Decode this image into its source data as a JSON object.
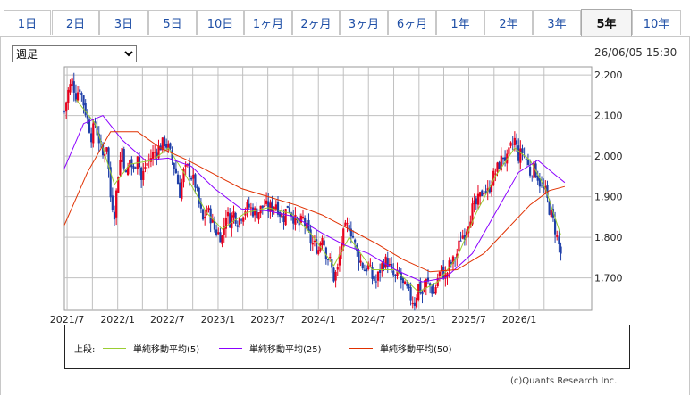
{
  "tabs": [
    {
      "label": "1日",
      "active": false
    },
    {
      "label": "2日",
      "active": false
    },
    {
      "label": "3日",
      "active": false
    },
    {
      "label": "5日",
      "active": false
    },
    {
      "label": "10日",
      "active": false
    },
    {
      "label": "1ヶ月",
      "active": false
    },
    {
      "label": "2ヶ月",
      "active": false
    },
    {
      "label": "3ヶ月",
      "active": false
    },
    {
      "label": "6ヶ月",
      "active": false
    },
    {
      "label": "1年",
      "active": false
    },
    {
      "label": "2年",
      "active": false
    },
    {
      "label": "3年",
      "active": false
    },
    {
      "label": "5年",
      "active": true
    },
    {
      "label": "10年",
      "active": false
    }
  ],
  "controls": {
    "period_select": {
      "selected": "週足",
      "options": [
        "週足"
      ]
    },
    "timestamp": "26/06/05 15:30"
  },
  "legend": {
    "lead": "上段:",
    "items": [
      {
        "label": "単純移動平均(5)",
        "color": "#9acd32"
      },
      {
        "label": "単純移動平均(25)",
        "color": "#8b00ff"
      },
      {
        "label": "単純移動平均(50)",
        "color": "#e03000"
      }
    ]
  },
  "credit": "(c)Quants Research Inc.",
  "colors": {
    "up": "#e8001c",
    "down": "#1f3fa8",
    "grid": "#c0c0c0"
  },
  "chart_data": {
    "type": "candlestick",
    "interval": "weekly",
    "x_tick_labels": [
      "2021/7",
      "2022/1",
      "2022/7",
      "2023/1",
      "2023/7",
      "2024/1",
      "2024/7",
      "2025/1",
      "2025/7",
      "2026/1"
    ],
    "y_tick_labels": [
      "2,200",
      "2,100",
      "2,000",
      "1,900",
      "1,800",
      "1,700"
    ],
    "y_ticks": [
      2200,
      2100,
      2000,
      1900,
      1800,
      1700
    ],
    "ylim": [
      1620,
      2220
    ],
    "x_start": "2021-06-21",
    "x_end": "2026-09-21",
    "close_series": [
      [
        "2021-06-21",
        2110
      ],
      [
        "2021-07-05",
        2160
      ],
      [
        "2021-07-19",
        2185
      ],
      [
        "2021-08-02",
        2150
      ],
      [
        "2021-08-16",
        2170
      ],
      [
        "2021-08-30",
        2130
      ],
      [
        "2021-09-13",
        2090
      ],
      [
        "2021-09-27",
        2050
      ],
      [
        "2021-10-11",
        2080
      ],
      [
        "2021-10-25",
        2040
      ],
      [
        "2021-11-08",
        2000
      ],
      [
        "2021-11-22",
        2030
      ],
      [
        "2021-12-06",
        1900
      ],
      [
        "2021-12-20",
        1860
      ],
      [
        "2022-01-03",
        1960
      ],
      [
        "2022-01-17",
        2020
      ],
      [
        "2022-01-31",
        1950
      ],
      [
        "2022-02-14",
        1990
      ],
      [
        "2022-02-28",
        1960
      ],
      [
        "2022-03-14",
        2010
      ],
      [
        "2022-03-28",
        1940
      ],
      [
        "2022-04-11",
        1975
      ],
      [
        "2022-04-25",
        1990
      ],
      [
        "2022-05-09",
        2005
      ],
      [
        "2022-05-23",
        2015
      ],
      [
        "2022-06-06",
        2025
      ],
      [
        "2022-06-20",
        2035
      ],
      [
        "2022-07-04",
        2020
      ],
      [
        "2022-07-18",
        1990
      ],
      [
        "2022-08-01",
        1960
      ],
      [
        "2022-08-15",
        1910
      ],
      [
        "2022-08-29",
        1960
      ],
      [
        "2022-09-12",
        1970
      ],
      [
        "2022-09-26",
        1950
      ],
      [
        "2022-10-10",
        1930
      ],
      [
        "2022-10-24",
        1880
      ],
      [
        "2022-11-07",
        1840
      ],
      [
        "2022-11-21",
        1870
      ],
      [
        "2022-12-05",
        1850
      ],
      [
        "2022-12-19",
        1820
      ],
      [
        "2023-01-02",
        1810
      ],
      [
        "2023-01-16",
        1800
      ],
      [
        "2023-01-30",
        1860
      ],
      [
        "2023-02-13",
        1840
      ],
      [
        "2023-02-27",
        1860
      ],
      [
        "2023-03-13",
        1840
      ],
      [
        "2023-03-27",
        1855
      ],
      [
        "2023-04-10",
        1870
      ],
      [
        "2023-04-24",
        1875
      ],
      [
        "2023-05-08",
        1865
      ],
      [
        "2023-05-22",
        1860
      ],
      [
        "2023-06-05",
        1870
      ],
      [
        "2023-06-19",
        1880
      ],
      [
        "2023-07-03",
        1870
      ],
      [
        "2023-07-17",
        1875
      ],
      [
        "2023-07-31",
        1885
      ],
      [
        "2023-08-14",
        1860
      ],
      [
        "2023-08-28",
        1850
      ],
      [
        "2023-09-11",
        1880
      ],
      [
        "2023-09-25",
        1860
      ],
      [
        "2023-10-09",
        1840
      ],
      [
        "2023-10-23",
        1830
      ],
      [
        "2023-11-06",
        1845
      ],
      [
        "2023-11-20",
        1820
      ],
      [
        "2023-12-04",
        1790
      ],
      [
        "2023-12-18",
        1780
      ],
      [
        "2024-01-01",
        1770
      ],
      [
        "2024-01-15",
        1810
      ],
      [
        "2024-01-29",
        1760
      ],
      [
        "2024-02-12",
        1740
      ],
      [
        "2024-02-26",
        1700
      ],
      [
        "2024-03-11",
        1720
      ],
      [
        "2024-03-25",
        1790
      ],
      [
        "2024-04-08",
        1820
      ],
      [
        "2024-04-22",
        1830
      ],
      [
        "2024-05-06",
        1800
      ],
      [
        "2024-05-20",
        1760
      ],
      [
        "2024-06-03",
        1740
      ],
      [
        "2024-06-17",
        1720
      ],
      [
        "2024-07-01",
        1730
      ],
      [
        "2024-07-15",
        1700
      ],
      [
        "2024-07-29",
        1690
      ],
      [
        "2024-08-12",
        1720
      ],
      [
        "2024-08-26",
        1740
      ],
      [
        "2024-09-09",
        1740
      ],
      [
        "2024-09-23",
        1710
      ],
      [
        "2024-10-07",
        1700
      ],
      [
        "2024-10-21",
        1710
      ],
      [
        "2024-11-04",
        1680
      ],
      [
        "2024-11-18",
        1670
      ],
      [
        "2024-12-02",
        1650
      ],
      [
        "2024-12-16",
        1640
      ],
      [
        "2024-12-30",
        1680
      ],
      [
        "2025-01-13",
        1660
      ],
      [
        "2025-01-27",
        1690
      ],
      [
        "2025-02-10",
        1680
      ],
      [
        "2025-02-24",
        1660
      ],
      [
        "2025-03-10",
        1700
      ],
      [
        "2025-03-24",
        1720
      ],
      [
        "2025-04-07",
        1700
      ],
      [
        "2025-04-21",
        1730
      ],
      [
        "2025-05-05",
        1740
      ],
      [
        "2025-05-19",
        1760
      ],
      [
        "2025-06-02",
        1800
      ],
      [
        "2025-06-16",
        1810
      ],
      [
        "2025-06-30",
        1840
      ],
      [
        "2025-07-14",
        1870
      ],
      [
        "2025-07-28",
        1880
      ],
      [
        "2025-08-11",
        1900
      ],
      [
        "2025-08-25",
        1920
      ],
      [
        "2025-09-08",
        1910
      ],
      [
        "2025-09-22",
        1940
      ],
      [
        "2025-10-06",
        1960
      ],
      [
        "2025-10-20",
        1980
      ],
      [
        "2025-11-03",
        2000
      ],
      [
        "2025-11-17",
        1990
      ],
      [
        "2025-12-01",
        2020
      ],
      [
        "2025-12-15",
        2040
      ],
      [
        "2025-12-29",
        2000
      ],
      [
        "2026-01-12",
        2010
      ],
      [
        "2026-01-26",
        1990
      ],
      [
        "2026-02-09",
        1960
      ],
      [
        "2026-02-23",
        1970
      ],
      [
        "2026-03-09",
        1950
      ],
      [
        "2026-03-23",
        1920
      ],
      [
        "2026-04-06",
        1910
      ],
      [
        "2026-04-20",
        1870
      ],
      [
        "2026-05-04",
        1840
      ],
      [
        "2026-05-18",
        1800
      ],
      [
        "2026-06-01",
        1760
      ]
    ],
    "series": [
      {
        "name": "単純移動平均(5)",
        "color": "#9acd32",
        "values": [
          [
            "2021-08-02",
            2140
          ],
          [
            "2021-10-11",
            2080
          ],
          [
            "2021-12-20",
            1930
          ],
          [
            "2022-02-14",
            1980
          ],
          [
            "2022-05-09",
            1990
          ],
          [
            "2022-07-04",
            2020
          ],
          [
            "2022-09-12",
            1945
          ],
          [
            "2022-11-21",
            1860
          ],
          [
            "2023-01-16",
            1820
          ],
          [
            "2023-04-10",
            1860
          ],
          [
            "2023-07-03",
            1873
          ],
          [
            "2023-09-25",
            1858
          ],
          [
            "2023-12-04",
            1810
          ],
          [
            "2024-02-26",
            1730
          ],
          [
            "2024-04-22",
            1800
          ],
          [
            "2024-07-15",
            1720
          ],
          [
            "2024-10-07",
            1720
          ],
          [
            "2024-12-30",
            1665
          ],
          [
            "2025-03-10",
            1690
          ],
          [
            "2025-05-19",
            1750
          ],
          [
            "2025-07-28",
            1860
          ],
          [
            "2025-10-06",
            1950
          ],
          [
            "2025-12-15",
            2020
          ],
          [
            "2026-02-09",
            1990
          ],
          [
            "2026-04-06",
            1920
          ],
          [
            "2026-06-01",
            1805
          ]
        ]
      },
      {
        "name": "単純移動平均(25)",
        "color": "#8b00ff",
        "values": [
          [
            "2021-06-21",
            1970
          ],
          [
            "2021-08-30",
            2080
          ],
          [
            "2021-11-08",
            2100
          ],
          [
            "2022-01-17",
            2040
          ],
          [
            "2022-04-11",
            1990
          ],
          [
            "2022-07-04",
            1995
          ],
          [
            "2022-09-26",
            1975
          ],
          [
            "2022-12-19",
            1920
          ],
          [
            "2023-03-27",
            1870
          ],
          [
            "2023-07-03",
            1865
          ],
          [
            "2023-10-09",
            1850
          ],
          [
            "2024-01-15",
            1810
          ],
          [
            "2024-04-08",
            1780
          ],
          [
            "2024-07-01",
            1760
          ],
          [
            "2024-10-07",
            1720
          ],
          [
            "2025-01-13",
            1690
          ],
          [
            "2025-04-07",
            1700
          ],
          [
            "2025-07-14",
            1760
          ],
          [
            "2025-10-06",
            1860
          ],
          [
            "2025-12-29",
            1960
          ],
          [
            "2026-03-09",
            1990
          ],
          [
            "2026-05-18",
            1950
          ],
          [
            "2026-06-15",
            1935
          ]
        ]
      },
      {
        "name": "単純移動平均(50)",
        "color": "#e03000",
        "values": [
          [
            "2021-06-21",
            1830
          ],
          [
            "2021-09-13",
            1960
          ],
          [
            "2021-12-06",
            2060
          ],
          [
            "2022-03-14",
            2060
          ],
          [
            "2022-06-06",
            2020
          ],
          [
            "2022-09-12",
            1990
          ],
          [
            "2022-12-19",
            1955
          ],
          [
            "2023-03-27",
            1920
          ],
          [
            "2023-07-03",
            1900
          ],
          [
            "2023-10-09",
            1880
          ],
          [
            "2024-01-15",
            1855
          ],
          [
            "2024-04-22",
            1820
          ],
          [
            "2024-07-29",
            1785
          ],
          [
            "2024-11-04",
            1745
          ],
          [
            "2025-02-10",
            1715
          ],
          [
            "2025-05-19",
            1720
          ],
          [
            "2025-08-25",
            1760
          ],
          [
            "2025-11-17",
            1820
          ],
          [
            "2026-02-09",
            1880
          ],
          [
            "2026-04-20",
            1915
          ],
          [
            "2026-06-15",
            1925
          ]
        ]
      }
    ]
  }
}
